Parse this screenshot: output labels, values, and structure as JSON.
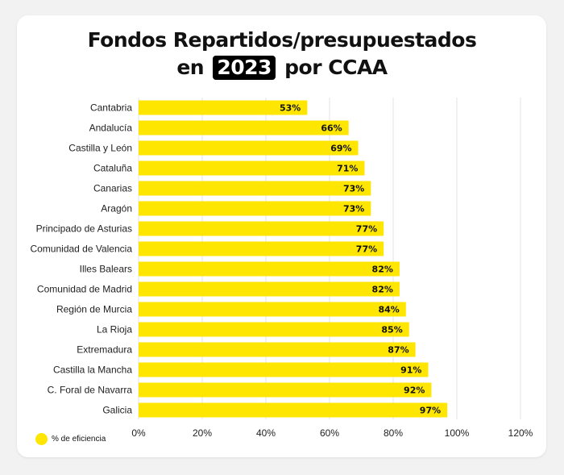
{
  "title": {
    "prefix": "Fondos Repartidos/presupuestados",
    "line2_pre": "en",
    "year": "2023",
    "line2_post": "por CCAA"
  },
  "legend": {
    "label": "% de eficiencia"
  },
  "colors": {
    "bar": "#ffe600",
    "grid": "#e3e3e3",
    "background": "#f2f2f2",
    "card": "#ffffff"
  },
  "chart_data": {
    "type": "bar",
    "orientation": "horizontal",
    "categories": [
      "Cantabria",
      "Andalucía",
      "Castilla y León",
      "Cataluña",
      "Canarias",
      "Aragón",
      "Principado de Asturias",
      "Comunidad de Valencia",
      "Illes Balears",
      "Comunidad de Madrid",
      "Región de Murcia",
      "La Rioja",
      "Extremadura",
      "Castilla la Mancha",
      "C. Foral de Navarra",
      "Galicia"
    ],
    "series": [
      {
        "name": "% de eficiencia",
        "values": [
          53,
          66,
          69,
          71,
          73,
          73,
          77,
          77,
          82,
          82,
          84,
          85,
          87,
          91,
          92,
          97
        ]
      }
    ],
    "data_labels": [
      "53%",
      "66%",
      "69%",
      "71%",
      "73%",
      "73%",
      "77%",
      "77%",
      "82%",
      "82%",
      "84%",
      "85%",
      "87%",
      "91%",
      "92%",
      "97%"
    ],
    "x_ticks": [
      0,
      20,
      40,
      60,
      80,
      100,
      120
    ],
    "x_tick_labels": [
      "0%",
      "20%",
      "40%",
      "60%",
      "80%",
      "100%",
      "120%"
    ],
    "xlim": [
      0,
      120
    ],
    "grid": true,
    "legend_position": "bottom-left"
  }
}
